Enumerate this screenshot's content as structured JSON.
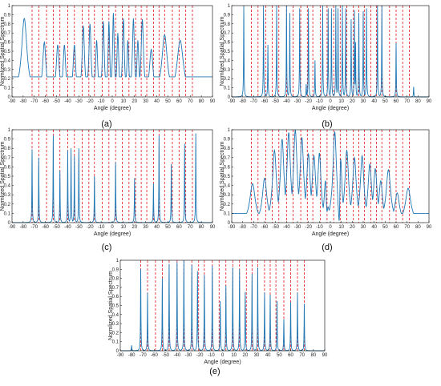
{
  "figure": {
    "ylabel": "Normlized Spatial Spectrum",
    "xlabel": "Angle (degree)",
    "line_color": "#1f77b4",
    "marker_color": "#e8141a",
    "panel_labels": [
      "(a)",
      "(b)",
      "(c)",
      "(d)",
      "(e)"
    ]
  },
  "chart_data": [
    {
      "type": "line",
      "panel": "a",
      "xlabel": "Angle (degree)",
      "ylabel": "Normlized Spatial Spectrum",
      "xlim": [
        -90,
        90
      ],
      "ylim": [
        0,
        1
      ],
      "xticks": [
        -90,
        -80,
        -70,
        -60,
        -50,
        -40,
        -30,
        -20,
        -10,
        0,
        10,
        20,
        30,
        40,
        50,
        60,
        70,
        80,
        90
      ],
      "yticks": [
        0,
        0.1,
        0.2,
        0.3,
        0.4,
        0.5,
        0.6,
        0.7,
        0.8,
        0.9,
        1
      ],
      "grid": false,
      "reference_angles": [
        -72,
        -66,
        -59,
        -53,
        -47,
        -40,
        -34,
        -27,
        -21,
        -16,
        -9,
        -3,
        3,
        9,
        15,
        21,
        26,
        31,
        37,
        42,
        47,
        54,
        60,
        66,
        72
      ],
      "style": "smooth",
      "baseline": 0.22,
      "tail_right": 0.2,
      "peaks": [
        {
          "x": -79,
          "y": 0.86,
          "w": 3.0
        },
        {
          "x": -61,
          "y": 0.6,
          "w": 1.8
        },
        {
          "x": -49,
          "y": 0.57,
          "w": 1.6
        },
        {
          "x": -43,
          "y": 0.57,
          "w": 1.4
        },
        {
          "x": -34,
          "y": 0.57,
          "w": 1.4
        },
        {
          "x": -26,
          "y": 0.78,
          "w": 1.3
        },
        {
          "x": -20,
          "y": 0.8,
          "w": 1.2
        },
        {
          "x": -14,
          "y": 0.62,
          "w": 1.1
        },
        {
          "x": -8,
          "y": 0.83,
          "w": 1.0
        },
        {
          "x": -3,
          "y": 0.83,
          "w": 0.9
        },
        {
          "x": 1,
          "y": 0.92,
          "w": 0.9
        },
        {
          "x": 5,
          "y": 0.7,
          "w": 1.0
        },
        {
          "x": 10,
          "y": 0.86,
          "w": 1.0
        },
        {
          "x": 14,
          "y": 0.62,
          "w": 1.0
        },
        {
          "x": 19,
          "y": 0.86,
          "w": 1.1
        },
        {
          "x": 23,
          "y": 0.62,
          "w": 1.1
        },
        {
          "x": 27,
          "y": 0.85,
          "w": 1.3
        },
        {
          "x": 35,
          "y": 0.52,
          "w": 2.0
        },
        {
          "x": 47,
          "y": 0.68,
          "w": 3.0
        },
        {
          "x": 61,
          "y": 0.62,
          "w": 3.5
        }
      ]
    },
    {
      "type": "line",
      "panel": "b",
      "xlabel": "Angle (degree)",
      "ylabel": "Normlized Spatial Spectrum",
      "xlim": [
        -90,
        90
      ],
      "ylim": [
        0,
        1
      ],
      "xticks": [
        -90,
        -80,
        -70,
        -60,
        -50,
        -40,
        -30,
        -20,
        -10,
        0,
        10,
        20,
        30,
        40,
        50,
        60,
        70,
        80,
        90
      ],
      "yticks": [
        0,
        0.1,
        0.2,
        0.3,
        0.4,
        0.5,
        0.6,
        0.7,
        0.8,
        0.9,
        1
      ],
      "grid": false,
      "reference_angles": [
        -72,
        -66,
        -59,
        -53,
        -47,
        -40,
        -34,
        -27,
        -21,
        -16,
        -9,
        -3,
        3,
        9,
        15,
        21,
        26,
        31,
        37,
        42,
        47,
        54,
        60,
        66,
        72
      ],
      "style": "spikes",
      "baseline": 0.0,
      "peaks": [
        {
          "x": -79,
          "y": 1.0
        },
        {
          "x": -61,
          "y": 1.0
        },
        {
          "x": -57,
          "y": 0.57
        },
        {
          "x": -49,
          "y": 1.0
        },
        {
          "x": -40,
          "y": 1.0
        },
        {
          "x": -37,
          "y": 0.92
        },
        {
          "x": -28,
          "y": 0.97
        },
        {
          "x": -22,
          "y": 0.14
        },
        {
          "x": -20,
          "y": 0.97
        },
        {
          "x": -14,
          "y": 0.4
        },
        {
          "x": -7,
          "y": 1.0
        },
        {
          "x": -2,
          "y": 0.97
        },
        {
          "x": 1,
          "y": 0.97
        },
        {
          "x": 5,
          "y": 1.0
        },
        {
          "x": 7,
          "y": 0.97
        },
        {
          "x": 11,
          "y": 1.0
        },
        {
          "x": 14,
          "y": 0.97
        },
        {
          "x": 19,
          "y": 0.85
        },
        {
          "x": 22,
          "y": 0.95
        },
        {
          "x": 23,
          "y": 0.6
        },
        {
          "x": 26,
          "y": 0.92
        },
        {
          "x": 30,
          "y": 0.94
        },
        {
          "x": 33,
          "y": 0.97
        },
        {
          "x": 43,
          "y": 1.0
        },
        {
          "x": 47,
          "y": 1.0
        },
        {
          "x": 60,
          "y": 0.59
        },
        {
          "x": 76,
          "y": 0.11
        }
      ]
    },
    {
      "type": "line",
      "panel": "c",
      "xlabel": "Angle (degree)",
      "ylabel": "Normlized Spatial Spectrum",
      "xlim": [
        -90,
        90
      ],
      "ylim": [
        0,
        1
      ],
      "xticks": [
        -90,
        -80,
        -70,
        -60,
        -50,
        -40,
        -30,
        -20,
        -10,
        0,
        10,
        20,
        30,
        40,
        50,
        60,
        70,
        80,
        90
      ],
      "yticks": [
        0,
        0.1,
        0.2,
        0.3,
        0.4,
        0.5,
        0.6,
        0.7,
        0.8,
        0.9,
        1
      ],
      "grid": false,
      "reference_angles": [
        -72,
        -66,
        -59,
        -53,
        -47,
        -40,
        -34,
        -27,
        -21,
        -16,
        -9,
        -3,
        3,
        9,
        15,
        21,
        26,
        31,
        37,
        42,
        47,
        54,
        60,
        66,
        72
      ],
      "style": "spikes",
      "baseline": 0.0,
      "peaks": [
        {
          "x": -72,
          "y": 0.79
        },
        {
          "x": -66,
          "y": 0.7
        },
        {
          "x": -53,
          "y": 0.94
        },
        {
          "x": -47,
          "y": 0.56
        },
        {
          "x": -40,
          "y": 0.78
        },
        {
          "x": -37,
          "y": 0.8
        },
        {
          "x": -34,
          "y": 0.72
        },
        {
          "x": -30,
          "y": 0.8
        },
        {
          "x": -16,
          "y": 0.5
        },
        {
          "x": 3,
          "y": 0.65
        },
        {
          "x": 20,
          "y": 0.48
        },
        {
          "x": 37,
          "y": 0.42
        },
        {
          "x": 42,
          "y": 0.94
        },
        {
          "x": 53,
          "y": 0.63
        },
        {
          "x": 65,
          "y": 0.85
        },
        {
          "x": 75,
          "y": 0.96
        }
      ]
    },
    {
      "type": "line",
      "panel": "d",
      "xlabel": "Angle (degree)",
      "ylabel": "Normlized Spatial Spectrum",
      "xlim": [
        -90,
        90
      ],
      "ylim": [
        0,
        1
      ],
      "xticks": [
        -90,
        -80,
        -70,
        -60,
        -50,
        -40,
        -30,
        -20,
        -10,
        0,
        10,
        20,
        30,
        40,
        50,
        60,
        70,
        80,
        90
      ],
      "yticks": [
        0,
        0.1,
        0.2,
        0.3,
        0.4,
        0.5,
        0.6,
        0.7,
        0.8,
        0.9,
        1
      ],
      "grid": false,
      "reference_angles": [
        -72,
        -66,
        -59,
        -53,
        -47,
        -40,
        -34,
        -27,
        -21,
        -16,
        -9,
        -3,
        3,
        9,
        15,
        21,
        26,
        31,
        37,
        42,
        47,
        54,
        60,
        66,
        72
      ],
      "style": "smooth",
      "baseline": 0.1,
      "tail_right": 0.1,
      "peaks": [
        {
          "x": -71,
          "y": 0.42,
          "w": 3.0
        },
        {
          "x": -60,
          "y": 0.48,
          "w": 2.5
        },
        {
          "x": -51,
          "y": 0.78,
          "w": 2.2
        },
        {
          "x": -44,
          "y": 0.9,
          "w": 2.0
        },
        {
          "x": -38,
          "y": 0.97,
          "w": 2.0
        },
        {
          "x": -32,
          "y": 1.0,
          "w": 2.0
        },
        {
          "x": -26,
          "y": 0.92,
          "w": 2.0
        },
        {
          "x": -20,
          "y": 0.74,
          "w": 2.0
        },
        {
          "x": -15,
          "y": 0.72,
          "w": 2.0
        },
        {
          "x": -10,
          "y": 0.75,
          "w": 1.8
        },
        {
          "x": -4,
          "y": 0.6,
          "w": 1.5
        },
        {
          "x": 4,
          "y": 0.98,
          "w": 2.0
        },
        {
          "x": 9,
          "y": 0.85,
          "w": 1.5
        },
        {
          "x": 15,
          "y": 0.78,
          "w": 2.0
        },
        {
          "x": 22,
          "y": 0.7,
          "w": 2.0
        },
        {
          "x": 29,
          "y": 0.72,
          "w": 2.0
        },
        {
          "x": 36,
          "y": 0.63,
          "w": 2.0
        },
        {
          "x": 41,
          "y": 0.58,
          "w": 2.0
        },
        {
          "x": 46,
          "y": 0.45,
          "w": 2.0
        },
        {
          "x": 53,
          "y": 0.57,
          "w": 2.5
        },
        {
          "x": 61,
          "y": 0.32,
          "w": 2.5
        },
        {
          "x": 71,
          "y": 0.37,
          "w": 3.0
        }
      ],
      "dips": [
        {
          "x": -3,
          "y": 0.12,
          "w": 1.2
        },
        {
          "x": 8,
          "y": 0.02,
          "w": 1.0
        }
      ]
    },
    {
      "type": "line",
      "panel": "e",
      "xlabel": "Angle (degree)",
      "ylabel": "Normlized Spatial Spectrum",
      "xlim": [
        -90,
        90
      ],
      "ylim": [
        0,
        1
      ],
      "xticks": [
        -90,
        -80,
        -70,
        -60,
        -50,
        -40,
        -30,
        -20,
        -10,
        0,
        10,
        20,
        30,
        40,
        50,
        60,
        70,
        80,
        90
      ],
      "yticks": [
        0,
        0.1,
        0.2,
        0.3,
        0.4,
        0.5,
        0.6,
        0.7,
        0.8,
        0.9,
        1
      ],
      "grid": false,
      "reference_angles": [
        -72,
        -66,
        -59,
        -53,
        -47,
        -40,
        -34,
        -27,
        -21,
        -16,
        -9,
        -3,
        3,
        9,
        15,
        21,
        26,
        31,
        37,
        42,
        47,
        54,
        60,
        66,
        72
      ],
      "style": "spikes",
      "baseline": 0.0,
      "peaks": [
        {
          "x": -80,
          "y": 0.06
        },
        {
          "x": -72,
          "y": 0.9
        },
        {
          "x": -66,
          "y": 0.64
        },
        {
          "x": -53,
          "y": 0.8
        },
        {
          "x": -47,
          "y": 0.96
        },
        {
          "x": -40,
          "y": 0.98
        },
        {
          "x": -34,
          "y": 1.0
        },
        {
          "x": -27,
          "y": 0.95
        },
        {
          "x": -22,
          "y": 0.88
        },
        {
          "x": -16,
          "y": 0.84
        },
        {
          "x": -9,
          "y": 0.94
        },
        {
          "x": -2,
          "y": 0.55
        },
        {
          "x": 3,
          "y": 0.72
        },
        {
          "x": 9,
          "y": 0.92
        },
        {
          "x": 15,
          "y": 0.9
        },
        {
          "x": 20,
          "y": 0.65
        },
        {
          "x": 26,
          "y": 0.85
        },
        {
          "x": 31,
          "y": 0.92
        },
        {
          "x": 37,
          "y": 0.64
        },
        {
          "x": 42,
          "y": 0.62
        },
        {
          "x": 48,
          "y": 0.55
        },
        {
          "x": 54,
          "y": 0.35
        },
        {
          "x": 60,
          "y": 0.54
        },
        {
          "x": 66,
          "y": 0.64
        },
        {
          "x": 72,
          "y": 0.52
        }
      ]
    }
  ]
}
